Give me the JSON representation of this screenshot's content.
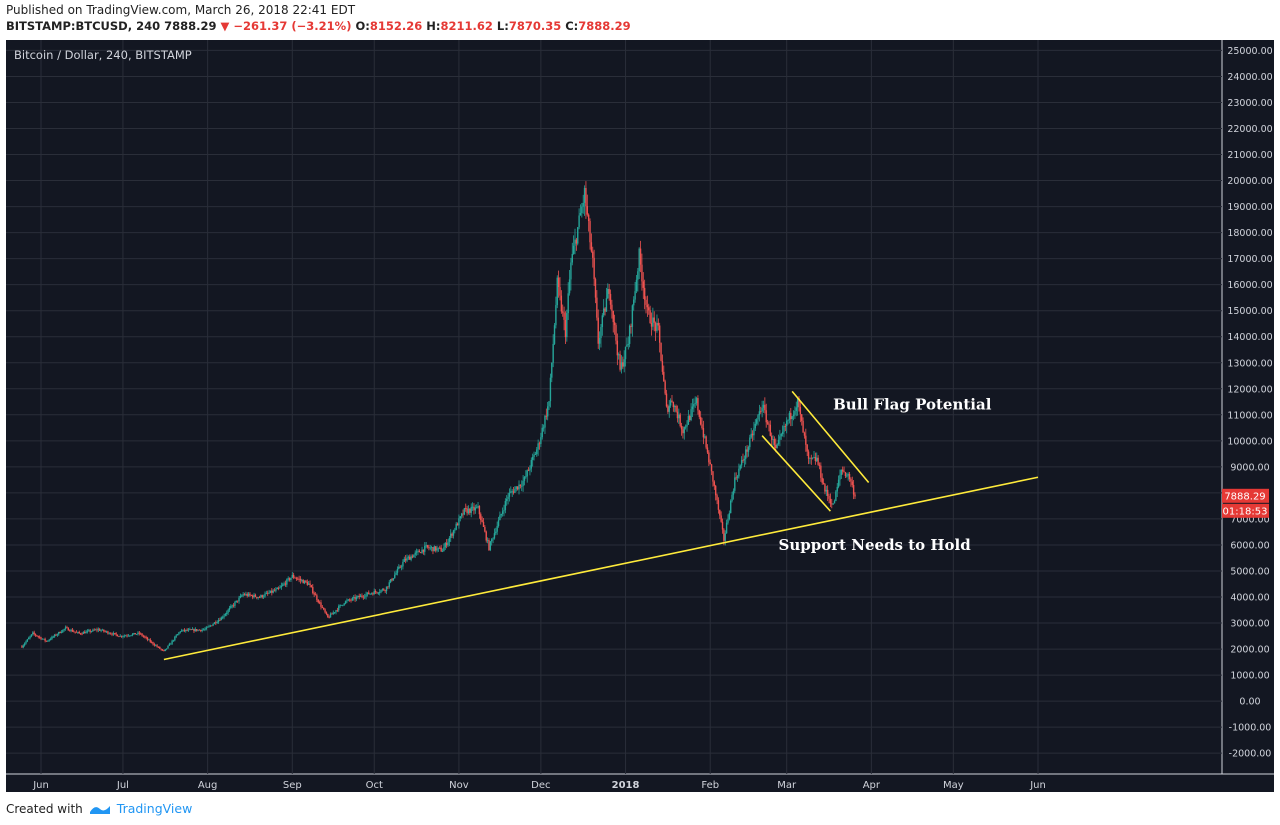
{
  "header": {
    "published": "Published on TradingView.com, March 26, 2018 22:41 EDT",
    "symbol": "BITSTAMP:BTCUSD, 240",
    "last": "7888.29",
    "change": "−261.37 (−3.21%)",
    "o_label": "O:",
    "o": "8152.26",
    "h_label": "H:",
    "h": "8211.62",
    "l_label": "L:",
    "l": "7870.35",
    "c_label": "C:",
    "c": "7888.29"
  },
  "footer": {
    "created_with": "Created with",
    "brand": "TradingView"
  },
  "colors": {
    "background": "#131722",
    "up": "#26a69a",
    "down": "#ef5350",
    "trendline": "#ffeb3b",
    "grid": "#2a2e39",
    "price_badge": "#e53935"
  },
  "chart_data": {
    "type": "candlestick",
    "title": "Bitcoin / Dollar, 240, BITSTAMP",
    "x_ticks": [
      "Jun",
      "Jul",
      "Aug",
      "Sep",
      "Oct",
      "Nov",
      "Dec",
      "2018",
      "Feb",
      "Mar",
      "Apr",
      "May",
      "Jun"
    ],
    "y_ticks": [
      "25000.00",
      "24000.00",
      "23000.00",
      "22000.00",
      "21000.00",
      "20000.00",
      "19000.00",
      "18000.00",
      "17000.00",
      "16000.00",
      "15000.00",
      "14000.00",
      "13000.00",
      "12000.00",
      "11000.00",
      "10000.00",
      "9000.00",
      "8000.00",
      "7000.00",
      "6000.00",
      "5000.00",
      "4000.00",
      "3000.00",
      "2000.00",
      "1000.00",
      "0.00",
      "-1000.00",
      "-2000.00"
    ],
    "ylim": [
      -2800,
      25400
    ],
    "last_price": "7888.29",
    "countdown": "01:18:53",
    "price_path": [
      [
        "2017-05-25",
        2100
      ],
      [
        "2017-05-29",
        2600
      ],
      [
        "2017-06-03",
        2300
      ],
      [
        "2017-06-10",
        2800
      ],
      [
        "2017-06-15",
        2600
      ],
      [
        "2017-06-22",
        2750
      ],
      [
        "2017-06-30",
        2500
      ],
      [
        "2017-07-07",
        2600
      ],
      [
        "2017-07-16",
        1900
      ],
      [
        "2017-07-22",
        2700
      ],
      [
        "2017-07-31",
        2750
      ],
      [
        "2017-08-06",
        3200
      ],
      [
        "2017-08-14",
        4100
      ],
      [
        "2017-08-20",
        4000
      ],
      [
        "2017-08-27",
        4300
      ],
      [
        "2017-09-01",
        4800
      ],
      [
        "2017-09-07",
        4500
      ],
      [
        "2017-09-14",
        3200
      ],
      [
        "2017-09-20",
        3800
      ],
      [
        "2017-09-28",
        4100
      ],
      [
        "2017-10-05",
        4300
      ],
      [
        "2017-10-12",
        5400
      ],
      [
        "2017-10-20",
        5900
      ],
      [
        "2017-10-26",
        5800
      ],
      [
        "2017-11-03",
        7300
      ],
      [
        "2017-11-08",
        7400
      ],
      [
        "2017-11-12",
        5900
      ],
      [
        "2017-11-19",
        7900
      ],
      [
        "2017-11-25",
        8500
      ],
      [
        "2017-11-30",
        9800
      ],
      [
        "2017-12-04",
        11500
      ],
      [
        "2017-12-07",
        16000
      ],
      [
        "2017-12-10",
        14200
      ],
      [
        "2017-12-12",
        16800
      ],
      [
        "2017-12-17",
        19500
      ],
      [
        "2017-12-20",
        16800
      ],
      [
        "2017-12-22",
        13800
      ],
      [
        "2017-12-26",
        15900
      ],
      [
        "2017-12-30",
        12700
      ],
      [
        "2018-01-02",
        13800
      ],
      [
        "2018-01-06",
        17100
      ],
      [
        "2018-01-09",
        14900
      ],
      [
        "2018-01-13",
        14200
      ],
      [
        "2018-01-16",
        11200
      ],
      [
        "2018-01-18",
        11600
      ],
      [
        "2018-01-22",
        10400
      ],
      [
        "2018-01-27",
        11500
      ],
      [
        "2018-01-30",
        10000
      ],
      [
        "2018-02-02",
        8500
      ],
      [
        "2018-02-06",
        6200
      ],
      [
        "2018-02-10",
        8500
      ],
      [
        "2018-02-15",
        9800
      ],
      [
        "2018-02-20",
        11400
      ],
      [
        "2018-02-25",
        9600
      ],
      [
        "2018-03-01",
        10700
      ],
      [
        "2018-03-05",
        11500
      ],
      [
        "2018-03-09",
        9200
      ],
      [
        "2018-03-12",
        9300
      ],
      [
        "2018-03-15",
        8100
      ],
      [
        "2018-03-18",
        7500
      ],
      [
        "2018-03-21",
        8900
      ],
      [
        "2018-03-24",
        8600
      ],
      [
        "2018-03-26",
        7888
      ]
    ],
    "annotations": [
      {
        "type": "line",
        "label": "support-trendline",
        "from": [
          "2017-07-16",
          1600
        ],
        "to": [
          "2018-06-01",
          8600
        ]
      },
      {
        "type": "line",
        "label": "flag-upper",
        "from": [
          "2018-03-03",
          11900
        ],
        "to": [
          "2018-03-31",
          8400
        ]
      },
      {
        "type": "line",
        "label": "flag-lower",
        "from": [
          "2018-02-20",
          10200
        ],
        "to": [
          "2018-03-17",
          7300
        ]
      },
      {
        "type": "text",
        "text": "Bull Flag Potential",
        "at": [
          "2018-03-18",
          11200
        ]
      },
      {
        "type": "text",
        "text": "Support Needs to Hold",
        "at": [
          "2018-02-26",
          5800
        ]
      }
    ]
  }
}
